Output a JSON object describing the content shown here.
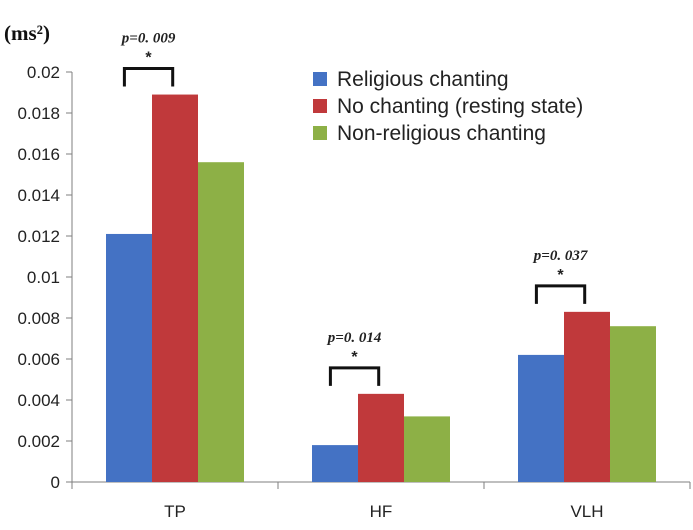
{
  "chart_data": {
    "type": "bar",
    "unit_label": "(ms²)",
    "categories": [
      "TP",
      "HF",
      "VLH"
    ],
    "series": [
      {
        "name": "Religious chanting",
        "color": "#4472C4",
        "values": [
          0.0121,
          0.0018,
          0.0062
        ]
      },
      {
        "name": "No chanting (resting state)",
        "color": "#C0393B",
        "values": [
          0.0189,
          0.0043,
          0.0083
        ]
      },
      {
        "name": "Non-religious chanting",
        "color": "#8DB046",
        "values": [
          0.0156,
          0.0032,
          0.0076
        ]
      }
    ],
    "ylim": [
      0,
      0.02
    ],
    "yticks": [
      "0",
      "0.002",
      "0.004",
      "0.006",
      "0.008",
      "0.01",
      "0.012",
      "0.014",
      "0.016",
      "0.018",
      "0.02"
    ],
    "legend_position": "top-right",
    "grid": false,
    "annotations": [
      {
        "category": "TP",
        "text": "p=0. 009",
        "marker": "*"
      },
      {
        "category": "HF",
        "text": "p=0. 014",
        "marker": "*"
      },
      {
        "category": "VLH",
        "text": "p=0. 037",
        "marker": "*"
      }
    ]
  }
}
